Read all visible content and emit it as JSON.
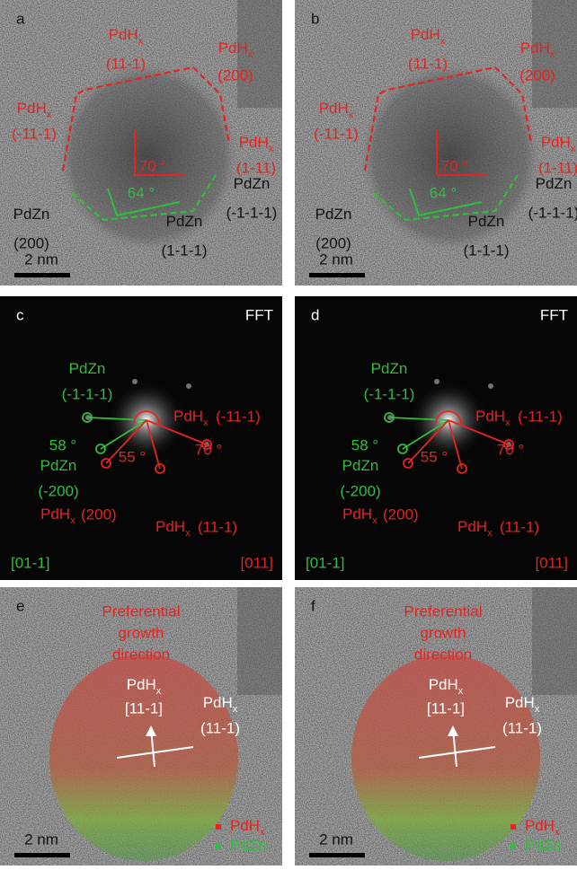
{
  "panels": [
    {
      "letter": "a",
      "labels": [
        {
          "name": "PdH",
          "sub": "x",
          "plane": "(11-1)",
          "color": "#e8231f"
        },
        {
          "name": "PdH",
          "sub": "x",
          "plane": "(200)",
          "color": "#e8231f"
        },
        {
          "name": "PdH",
          "sub": "x",
          "plane": "(-11-1)",
          "color": "#e8231f"
        },
        {
          "name": "PdH",
          "sub": "x",
          "plane": "(1-11)",
          "color": "#e8231f"
        },
        {
          "name": "PdZn",
          "plane": "(200)",
          "color": "#111111"
        },
        {
          "name": "PdZn",
          "plane": "(-1-1-1)",
          "color": "#111111"
        },
        {
          "name": "PdZn",
          "plane": "(1-1-1)",
          "color": "#111111"
        }
      ],
      "angles": [
        {
          "text": "70 °",
          "color": "#e8231f"
        },
        {
          "text": "64 °",
          "color": "#2fbf3a"
        }
      ],
      "scale_bar": "2 nm"
    },
    {
      "letter": "b",
      "labels": [
        {
          "name": "PdH",
          "sub": "x",
          "plane": "(11-1)",
          "color": "#e8231f"
        },
        {
          "name": "PdH",
          "sub": "x",
          "plane": "(200)",
          "color": "#e8231f"
        },
        {
          "name": "PdH",
          "sub": "x",
          "plane": "(-11-1)",
          "color": "#e8231f"
        },
        {
          "name": "PdH",
          "sub": "x",
          "plane": "(1-11)",
          "color": "#e8231f"
        },
        {
          "name": "PdZn",
          "plane": "(200)",
          "color": "#111111"
        },
        {
          "name": "PdZn",
          "plane": "(-1-1-1)",
          "color": "#111111"
        },
        {
          "name": "PdZn",
          "plane": "(1-1-1)",
          "color": "#111111"
        }
      ],
      "angles": [
        {
          "text": "70 °",
          "color": "#e8231f"
        },
        {
          "text": "64 °",
          "color": "#2fbf3a"
        }
      ],
      "scale_bar": "2 nm"
    },
    {
      "letter": "c",
      "tag": "FFT",
      "labels": [
        {
          "name": "PdZn",
          "plane": "(-1-1-1)",
          "color": "#2fbf3a"
        },
        {
          "name": "PdH",
          "sub": "x",
          "plane": "(-11-1)",
          "color": "#e8231f"
        },
        {
          "name": "PdZn",
          "plane": "(-200)",
          "color": "#2fbf3a"
        },
        {
          "name": "PdH",
          "sub": "x",
          "plane": "(200)",
          "color": "#e8231f"
        },
        {
          "name": "PdH",
          "sub": "x",
          "plane": "(11-1)",
          "color": "#e8231f"
        }
      ],
      "angles": [
        {
          "text": "58 °",
          "color": "#2fbf3a"
        },
        {
          "text": "70 °",
          "color": "#e8231f"
        },
        {
          "text": "55 °",
          "color": "#e8231f"
        }
      ],
      "zone_axes": [
        {
          "text": "[01-1]",
          "color": "#2fbf3a"
        },
        {
          "text": "[011]",
          "color": "#e8231f"
        }
      ]
    },
    {
      "letter": "d",
      "tag": "FFT",
      "labels": [
        {
          "name": "PdZn",
          "plane": "(-1-1-1)",
          "color": "#2fbf3a"
        },
        {
          "name": "PdH",
          "sub": "x",
          "plane": "(-11-1)",
          "color": "#e8231f"
        },
        {
          "name": "PdZn",
          "plane": "(-200)",
          "color": "#2fbf3a"
        },
        {
          "name": "PdH",
          "sub": "x",
          "plane": "(200)",
          "color": "#e8231f"
        },
        {
          "name": "PdH",
          "sub": "x",
          "plane": "(11-1)",
          "color": "#e8231f"
        }
      ],
      "angles": [
        {
          "text": "58 °",
          "color": "#2fbf3a"
        },
        {
          "text": "70 °",
          "color": "#e8231f"
        },
        {
          "text": "55 °",
          "color": "#e8231f"
        }
      ],
      "zone_axes": [
        {
          "text": "[01-1]",
          "color": "#2fbf3a"
        },
        {
          "text": "[011]",
          "color": "#e8231f"
        }
      ]
    },
    {
      "letter": "e",
      "title": [
        "Preferential",
        "growth",
        "direction"
      ],
      "labels": [
        {
          "name": "PdH",
          "sub": "x",
          "plane": "[11-1]",
          "color": "#ffffff"
        },
        {
          "name": "PdH",
          "sub": "x",
          "plane": "(11-1)",
          "color": "#ffffff"
        }
      ],
      "legend": [
        {
          "name": "PdH",
          "sub": "x",
          "color": "#e8231f"
        },
        {
          "name": "PdZn",
          "color": "#2fbf3a"
        }
      ],
      "scale_bar": "2 nm"
    },
    {
      "letter": "f",
      "title": [
        "Preferential",
        "growth",
        "direction"
      ],
      "labels": [
        {
          "name": "PdH",
          "sub": "x",
          "plane": "[11-1]",
          "color": "#ffffff"
        },
        {
          "name": "PdH",
          "sub": "x",
          "plane": "(11-1)",
          "color": "#ffffff"
        }
      ],
      "legend": [
        {
          "name": "PdH",
          "sub": "x",
          "color": "#e8231f"
        },
        {
          "name": "PdZn",
          "color": "#2fbf3a"
        }
      ],
      "scale_bar": "2 nm"
    }
  ]
}
